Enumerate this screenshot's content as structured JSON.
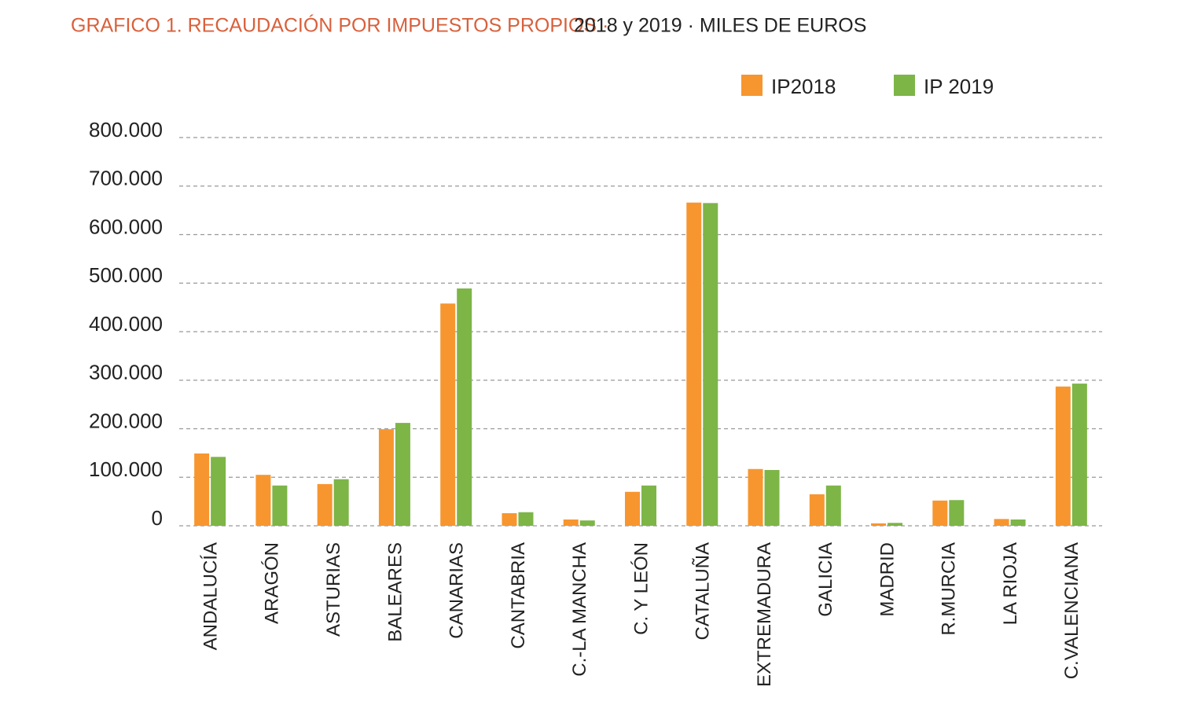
{
  "chart_data": {
    "type": "bar",
    "title": "GRAFICO 1. RECAUDACIÓN POR IMPUESTOS PROPIOS ·",
    "subtitle": "2018 y 2019 · MILES DE EUROS",
    "categories": [
      "ANDALUCÍA",
      "ARAGÓN",
      "ASTURIAS",
      "BALEARES",
      "CANARIAS",
      "CANTABRIA",
      "C.-LA MANCHA",
      "C. Y LEÓN",
      "CATALUÑA",
      "EXTREMADURA",
      "GALICIA",
      "MADRID",
      "R.MURCIA",
      "LA RIOJA",
      "C.VALENCIANA"
    ],
    "series": [
      {
        "name": "IP2018",
        "color": "#f7962f",
        "values": [
          149000,
          105000,
          86000,
          199000,
          458000,
          26000,
          13000,
          70000,
          666000,
          117000,
          65000,
          5000,
          52000,
          14000,
          287000
        ]
      },
      {
        "name": "IP 2019",
        "color": "#7db547",
        "values": [
          142000,
          83000,
          96000,
          212000,
          489000,
          28000,
          11000,
          83000,
          665000,
          115000,
          83000,
          6000,
          53000,
          13000,
          293000
        ]
      }
    ],
    "ylim": [
      0,
      800000
    ],
    "yticks": [
      0,
      {
        "value": 100000,
        "label": "100.000"
      },
      {
        "value": 200000,
        "label": "200.000"
      },
      {
        "value": 300000,
        "label": "300.000"
      },
      {
        "value": 400000,
        "label": "400.000"
      },
      {
        "value": 500000,
        "label": "500.000"
      },
      {
        "value": 600000,
        "label": "600.000"
      },
      {
        "value": 700000,
        "label": "700.000"
      },
      {
        "value": 800000,
        "label": "800.000"
      }
    ],
    "grid": true,
    "legend": "top-right"
  }
}
